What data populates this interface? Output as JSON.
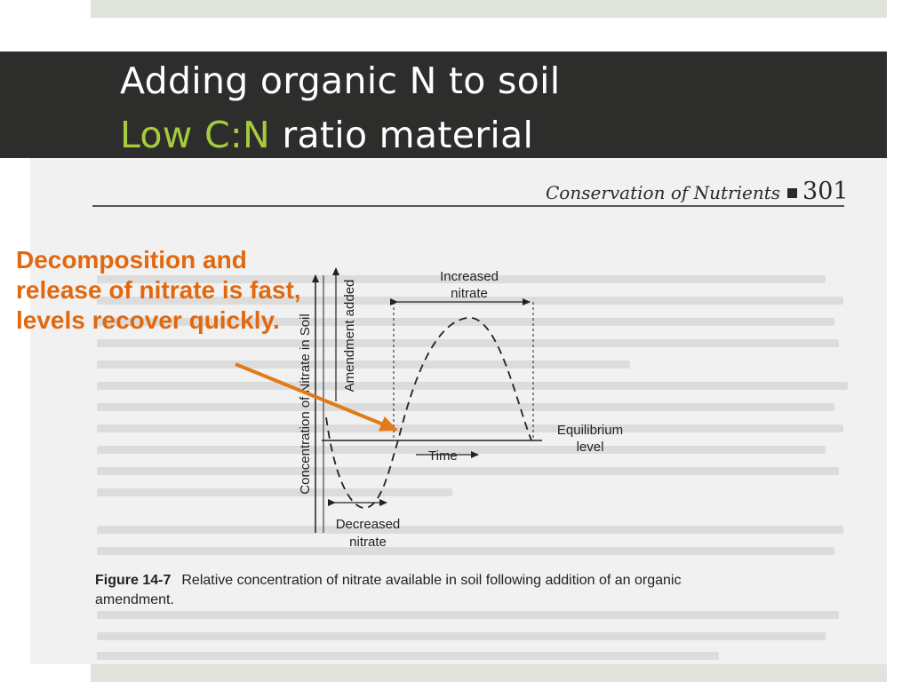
{
  "slide": {
    "title_line1": "Adding organic N to soil",
    "title_line2_accent": "Low C:N",
    "title_line2_rest": " ratio material",
    "callout": "Decomposition and release of nitrate is fast, levels recover quickly.",
    "colors": {
      "title_band": "#2d2d2b",
      "accent_green": "#a6cb3d",
      "callout_orange": "#e2680e",
      "arrow_orange": "#e07a1a"
    }
  },
  "scan": {
    "header_text": "Conservation of Nutrients",
    "page_number": "301",
    "figure": {
      "y_axis_label": "Concentration of Nitrate in Soil",
      "amendment_label": "Amendment added",
      "increased_label": [
        "Increased",
        "nitrate"
      ],
      "decreased_label": [
        "Decreased",
        "nitrate"
      ],
      "equilibrium_label": [
        "Equilibrium",
        "level"
      ],
      "time_label": "Time"
    },
    "caption_bold": "Figure 14-7",
    "caption_line1": "Relative concentration of nitrate available in soil following addition of an organic",
    "caption_line2": "amendment."
  }
}
